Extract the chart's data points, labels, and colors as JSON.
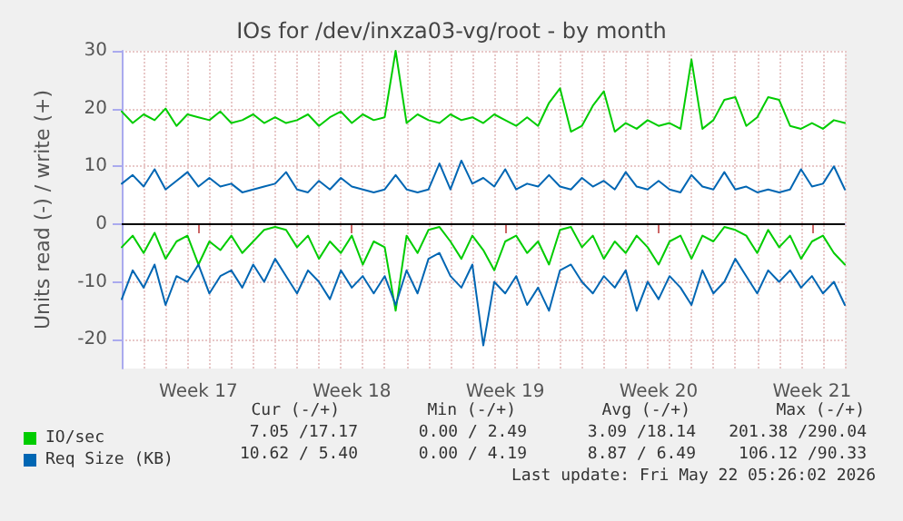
{
  "chart_data": {
    "type": "line",
    "title": "IOs for /dev/inxza03-vg/root - by month",
    "ylabel": "Units read (-) / write (+)",
    "categories": [
      null,
      null,
      null,
      null,
      null,
      null,
      null,
      "Week 17",
      null,
      null,
      null,
      null,
      null,
      null,
      null,
      null,
      null,
      null,
      null,
      null,
      null,
      "Week 18",
      null,
      null,
      null,
      null,
      null,
      null,
      null,
      null,
      null,
      null,
      null,
      null,
      null,
      "Week 19",
      null,
      null,
      null,
      null,
      null,
      null,
      null,
      null,
      null,
      null,
      null,
      null,
      null,
      "Week 20",
      null,
      null,
      null,
      null,
      null,
      null,
      null,
      null,
      null,
      null,
      null,
      null,
      null,
      "Week 21",
      null,
      null,
      null
    ],
    "series": [
      {
        "name": "IO/sec",
        "color": "#00cc00",
        "values": [
          19.5,
          17.5,
          19,
          18,
          20,
          17,
          19,
          18.5,
          18,
          19.5,
          17.5,
          18,
          19,
          17.5,
          18.5,
          17.5,
          18,
          19,
          17,
          18.5,
          19.5,
          17.5,
          19,
          18,
          18.5,
          30,
          17.5,
          19,
          18,
          17.5,
          19,
          18,
          18.5,
          17.5,
          19,
          18,
          17,
          18.5,
          17,
          21,
          23.5,
          16,
          17,
          20.5,
          23,
          16,
          17.5,
          16.5,
          18,
          17,
          17.5,
          16.5,
          28.5,
          16.5,
          18,
          21.5,
          22,
          17,
          18.5,
          22,
          21.5,
          17,
          16.5,
          17.5,
          16.5,
          18,
          17.5
        ]
      },
      {
        "color": "#00cc00",
        "values": [
          -4,
          -2,
          -5,
          -1.5,
          -6,
          -3,
          -2,
          -7,
          -3,
          -4.5,
          -2,
          -5,
          -3,
          -1,
          -0.5,
          -1,
          -4,
          -2,
          -6,
          -3,
          -5,
          -2,
          -7,
          -3,
          -4,
          -15,
          -2,
          -5,
          -1,
          -0.5,
          -3,
          -6,
          -2,
          -4.5,
          -8,
          -3,
          -2,
          -5,
          -3,
          -7,
          -1,
          -0.5,
          -4,
          -2,
          -6,
          -3,
          -5,
          -2,
          -4,
          -7,
          -3,
          -2,
          -6,
          -2,
          -3,
          -0.5,
          -1,
          -2,
          -5,
          -1,
          -4,
          -2,
          -6,
          -3,
          -2,
          -5,
          -7
        ]
      },
      {
        "name": "Req Size (KB)",
        "color": "#0066b3",
        "values": [
          7,
          8.5,
          6.5,
          9.5,
          6,
          7.5,
          9,
          6.5,
          8,
          6.5,
          7,
          5.5,
          6,
          6.5,
          7,
          9,
          6,
          5.5,
          7.5,
          6,
          8,
          6.5,
          6,
          5.5,
          6,
          8.5,
          6,
          5.5,
          6,
          10.5,
          6,
          11,
          7,
          8,
          6.5,
          9.5,
          6,
          7,
          6.5,
          8.5,
          6.5,
          6,
          8,
          6.5,
          7.5,
          6,
          9,
          6.5,
          6,
          7.5,
          6,
          5.5,
          8.5,
          6.5,
          6,
          9,
          6,
          6.5,
          5.5,
          6,
          5.5,
          6,
          9.5,
          6.5,
          7,
          10,
          6
        ]
      },
      {
        "color": "#0066b3",
        "values": [
          -13,
          -8,
          -11,
          -7,
          -14,
          -9,
          -10,
          -7,
          -12,
          -9,
          -8,
          -11,
          -7,
          -10,
          -6,
          -9,
          -12,
          -8,
          -10,
          -13,
          -8,
          -11,
          -9,
          -12,
          -9,
          -14,
          -8,
          -12,
          -6,
          -5,
          -9,
          -11,
          -7,
          -21,
          -10,
          -12,
          -9,
          -14,
          -11,
          -15,
          -8,
          -7,
          -10,
          -12,
          -9,
          -11,
          -8,
          -15,
          -10,
          -13,
          -9,
          -11,
          -14,
          -8,
          -12,
          -10,
          -6,
          -9,
          -12,
          -8,
          -10,
          -8,
          -11,
          -9,
          -12,
          -10,
          -14
        ]
      }
    ],
    "ylim": [
      -25,
      30
    ],
    "yticks": [
      -20,
      -10,
      0,
      10,
      20,
      30
    ],
    "ref_lines": [
      {
        "axis": "y",
        "value": 0,
        "color": "#000000"
      }
    ],
    "grid": true,
    "legend": "bottom left",
    "marker": "none",
    "line_style": "solid",
    "annotations": [
      "Cur (-/+)",
      "Min (-/+)",
      "Avg (-/+)",
      "Max (-/+)",
      "7.05 /17.17",
      "0.00 / 2.49",
      "3.09 /18.14",
      "201.38 /290.04",
      "10.62 / 5.40",
      "0.00 / 4.19",
      "8.87 / 6.49",
      "106.12 /90.33",
      "Last update: Fri May 22 05:26:02 2026"
    ]
  }
}
